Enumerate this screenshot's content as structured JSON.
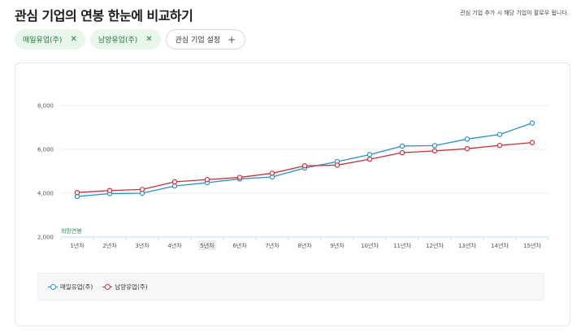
{
  "header": {
    "title": "관심 기업의 연봉 한눈에 비교하기",
    "notice": "관심 기업 추가 시 해당 기업이 팔로우 됩니다."
  },
  "chips": [
    {
      "label": "매일유업(주)",
      "close_icon": "close-icon"
    },
    {
      "label": "남양유업(주)",
      "close_icon": "close-icon"
    }
  ],
  "add_chip": {
    "label": "관심 기업 설정",
    "icon": "plus-icon"
  },
  "colors": {
    "series1": "#2b8fd0",
    "series2": "#cc2f3a",
    "accent": "#1f7a3a"
  },
  "chart_data": {
    "type": "line",
    "annotation": "희망연봉",
    "categories": [
      "1년차",
      "2년차",
      "3년차",
      "4년차",
      "5년차",
      "6년차",
      "7년차",
      "8년차",
      "9년차",
      "10년차",
      "11년차",
      "12년차",
      "13년차",
      "14년차",
      "15년차"
    ],
    "highlighted_category": "5년차",
    "yticks": [
      "2,000",
      "4,000",
      "6,000",
      "8,000"
    ],
    "ylim": [
      2000,
      8000
    ],
    "grid": true,
    "legend": "bottom",
    "series": [
      {
        "name": "매일유업(주)",
        "values": [
          3850,
          3980,
          4000,
          4330,
          4480,
          4650,
          4740,
          5150,
          5440,
          5760,
          6150,
          6170,
          6470,
          6680,
          7200
        ]
      },
      {
        "name": "남양유업(주)",
        "values": [
          4030,
          4120,
          4170,
          4520,
          4620,
          4720,
          4910,
          5250,
          5280,
          5550,
          5850,
          5930,
          6030,
          6180,
          6310
        ]
      }
    ]
  }
}
